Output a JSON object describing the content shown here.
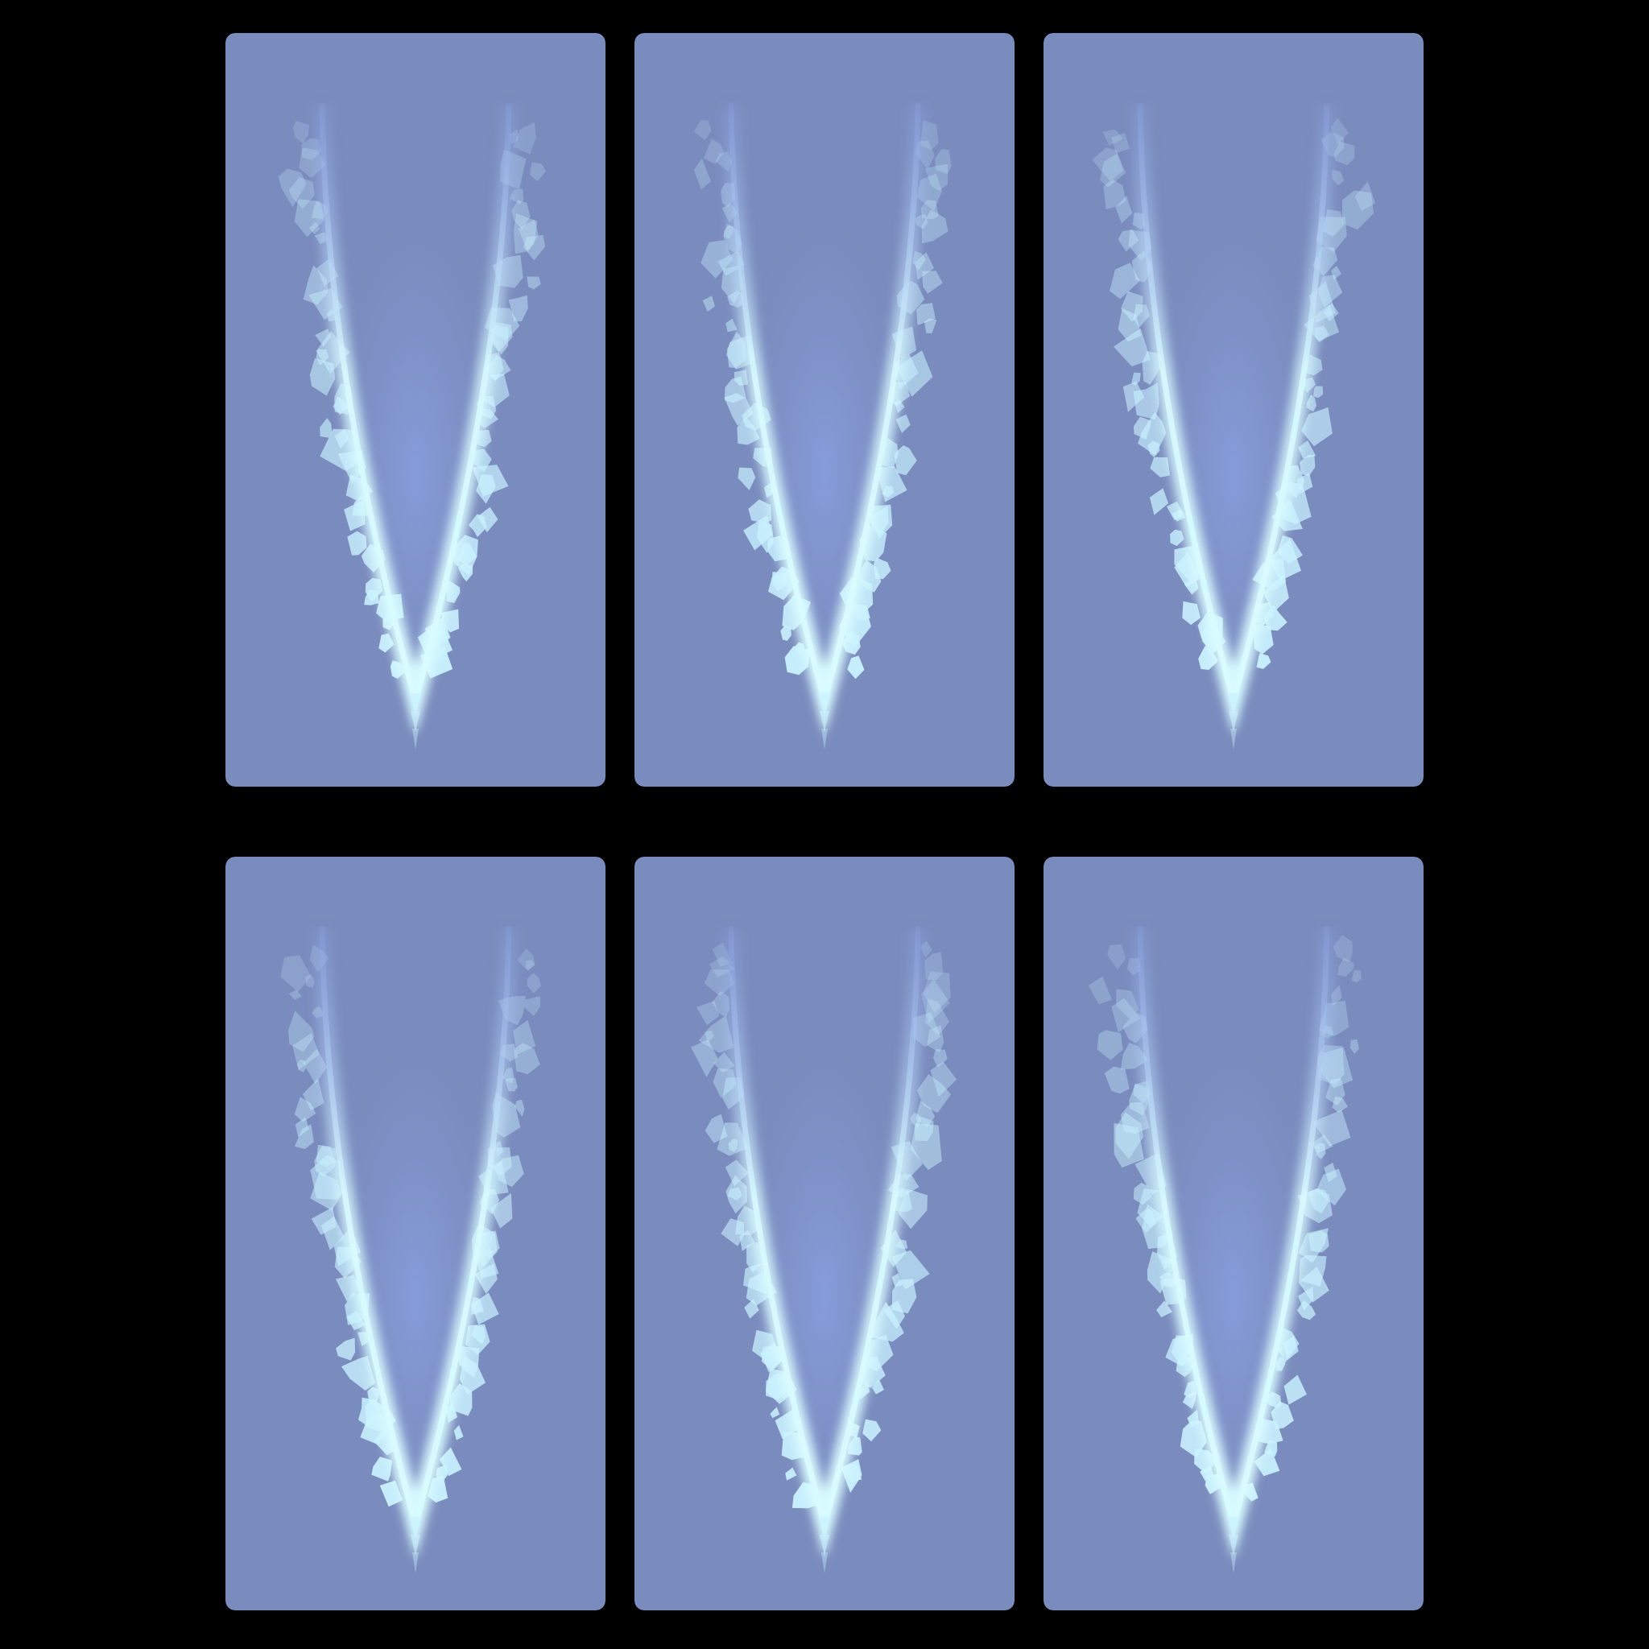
{
  "sprite_sheet": {
    "background_color": "#000000",
    "panel_color": "#7a8bbd",
    "inner_glow_color": "#8ea7ec",
    "edge_color": "#d8fbff",
    "shard_color": "#c9f2ff",
    "frames": [
      {
        "variant": 1,
        "shape": "v-ice-trail-icon"
      },
      {
        "variant": 2,
        "shape": "v-ice-trail-icon"
      },
      {
        "variant": 3,
        "shape": "v-ice-trail-icon"
      },
      {
        "variant": 4,
        "shape": "v-ice-trail-icon"
      },
      {
        "variant": 5,
        "shape": "v-ice-trail-icon"
      },
      {
        "variant": 6,
        "shape": "v-ice-trail-icon"
      }
    ]
  }
}
